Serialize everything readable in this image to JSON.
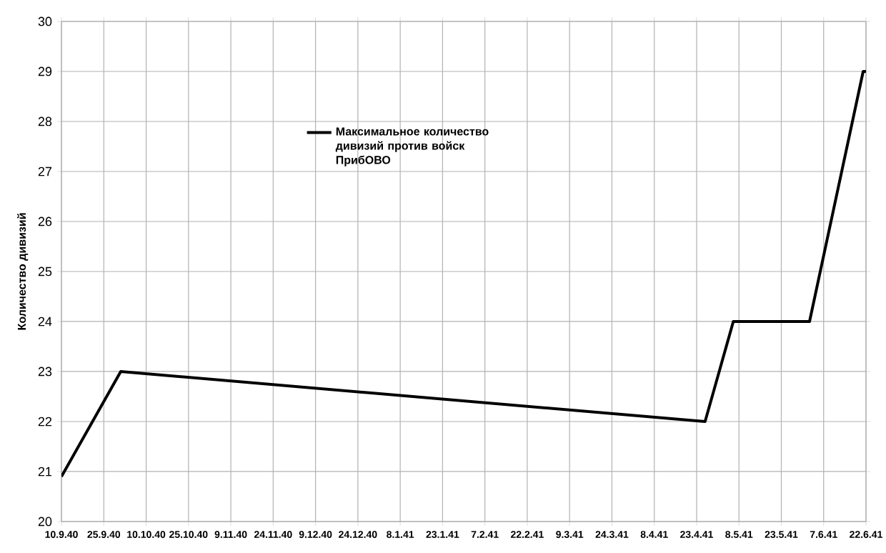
{
  "chart_data": {
    "type": "line",
    "ylabel": "Количество дивизий",
    "x": [
      "1940-09-10",
      "1940-10-01",
      "1941-04-26",
      "1941-05-06",
      "1941-06-02",
      "1941-06-21",
      "1941-06-22"
    ],
    "series": [
      {
        "name": "Максимальное количество дивизий против войск ПрибОВО",
        "color": "#000000",
        "values": [
          20.9,
          23,
          22,
          24,
          24,
          29,
          29
        ]
      }
    ],
    "xlim": [
      "1940-09-10",
      "1941-06-22"
    ],
    "xticks": [
      {
        "value": "1940-09-10",
        "label": "10.9.40"
      },
      {
        "value": "1940-09-25",
        "label": "25.9.40"
      },
      {
        "value": "1940-10-10",
        "label": "10.10.40"
      },
      {
        "value": "1940-10-25",
        "label": "25.10.40"
      },
      {
        "value": "1940-11-09",
        "label": "9.11.40"
      },
      {
        "value": "1940-11-24",
        "label": "24.11.40"
      },
      {
        "value": "1940-12-09",
        "label": "9.12.40"
      },
      {
        "value": "1940-12-24",
        "label": "24.12.40"
      },
      {
        "value": "1941-01-08",
        "label": "8.1.41"
      },
      {
        "value": "1941-01-23",
        "label": "23.1.41"
      },
      {
        "value": "1941-02-07",
        "label": "7.2.41"
      },
      {
        "value": "1941-02-22",
        "label": "22.2.41"
      },
      {
        "value": "1941-03-09",
        "label": "9.3.41"
      },
      {
        "value": "1941-03-24",
        "label": "24.3.41"
      },
      {
        "value": "1941-04-08",
        "label": "8.4.41"
      },
      {
        "value": "1941-04-23",
        "label": "23.4.41"
      },
      {
        "value": "1941-05-08",
        "label": "8.5.41"
      },
      {
        "value": "1941-05-23",
        "label": "23.5.41"
      },
      {
        "value": "1941-06-07",
        "label": "7.6.41"
      },
      {
        "value": "1941-06-22",
        "label": "22.6.41"
      }
    ],
    "ylim": [
      20,
      30
    ],
    "yticks": [
      20,
      21,
      22,
      23,
      24,
      25,
      26,
      27,
      28,
      29,
      30
    ],
    "grid": true,
    "legend": "top",
    "marker": "none",
    "line_style": "solid"
  }
}
